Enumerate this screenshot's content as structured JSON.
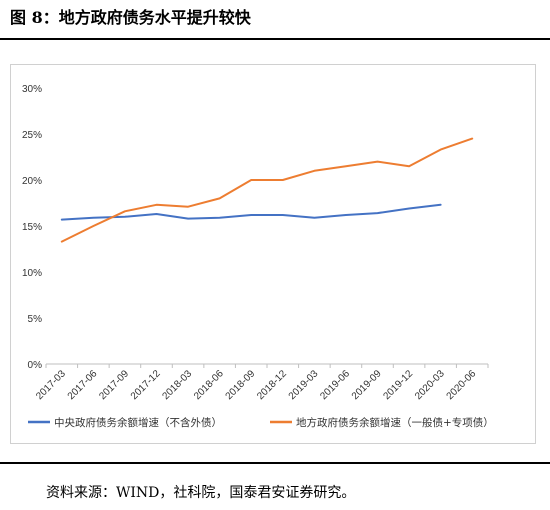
{
  "figure": {
    "title": "图 8：地方政府债务水平提升较快",
    "source": "资料来源：WIND，社科院，国泰君安证券研究。"
  },
  "colors": {
    "central": "#4472C4",
    "local": "#ED7D31",
    "axis": "#bfbfbf",
    "text": "#333333"
  },
  "chart_data": {
    "type": "line",
    "title": "",
    "xlabel": "",
    "ylabel": "",
    "categories": [
      "2017-03",
      "2017-06",
      "2017-09",
      "2017-12",
      "2018-03",
      "2018-06",
      "2018-09",
      "2018-12",
      "2019-03",
      "2019-06",
      "2019-09",
      "2019-12",
      "2020-03",
      "2020-06"
    ],
    "ylim": [
      0,
      30
    ],
    "yticks": [
      "0%",
      "5%",
      "10%",
      "15%",
      "20%",
      "25%",
      "30%"
    ],
    "grid": false,
    "legend_position": "bottom",
    "series": [
      {
        "name": "中央政府债务余额增速（不含外债）",
        "color_key": "central",
        "values": [
          15.7,
          15.9,
          16.0,
          16.3,
          15.8,
          15.9,
          16.2,
          16.2,
          15.9,
          16.2,
          16.4,
          16.9,
          17.3,
          null
        ]
      },
      {
        "name": "地方政府债务余额增速（一般债+专项债）",
        "color_key": "local",
        "values": [
          13.3,
          15.0,
          16.6,
          17.3,
          17.1,
          18.0,
          20.0,
          20.0,
          21.0,
          21.5,
          22.0,
          21.5,
          23.3,
          24.5
        ]
      }
    ]
  }
}
